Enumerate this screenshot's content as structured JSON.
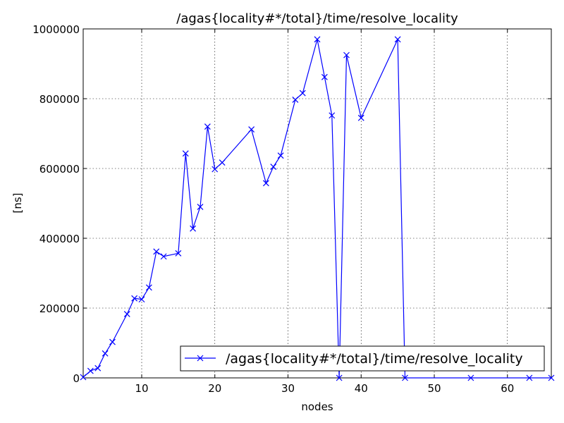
{
  "chart_data": {
    "type": "line",
    "title": "/agas{locality#*/total}/time/resolve_locality",
    "xlabel": "nodes",
    "ylabel": "[ns]",
    "xlim": [
      2,
      66
    ],
    "ylim": [
      0,
      1000000
    ],
    "xticks": [
      10,
      20,
      30,
      40,
      50,
      60
    ],
    "yticks": [
      0,
      200000,
      400000,
      600000,
      800000,
      1000000
    ],
    "xtick_labels": [
      "10",
      "20",
      "30",
      "40",
      "50",
      "60"
    ],
    "ytick_labels": [
      "0",
      "200000",
      "400000",
      "600000",
      "800000",
      "1000000"
    ],
    "grid": true,
    "legend_position": "lower-right",
    "color": "#0000ff",
    "marker": "x",
    "series": [
      {
        "name": "/agas{locality#*/total}/time/resolve_locality",
        "x": [
          2,
          3,
          4,
          5,
          6,
          8,
          9,
          10,
          11,
          12,
          13,
          15,
          16,
          17,
          18,
          19,
          20,
          21,
          25,
          27,
          28,
          29,
          31,
          32,
          34,
          35,
          36,
          37,
          38,
          40,
          45,
          46,
          55,
          63,
          66
        ],
        "y": [
          2000,
          20000,
          28000,
          70000,
          103000,
          183000,
          228000,
          225000,
          259000,
          362000,
          348000,
          357000,
          643000,
          428000,
          490000,
          720000,
          598000,
          617000,
          712000,
          558000,
          605000,
          637000,
          797000,
          816000,
          970000,
          862000,
          752000,
          0,
          925000,
          745000,
          970000,
          0,
          0,
          0,
          0
        ]
      }
    ]
  }
}
